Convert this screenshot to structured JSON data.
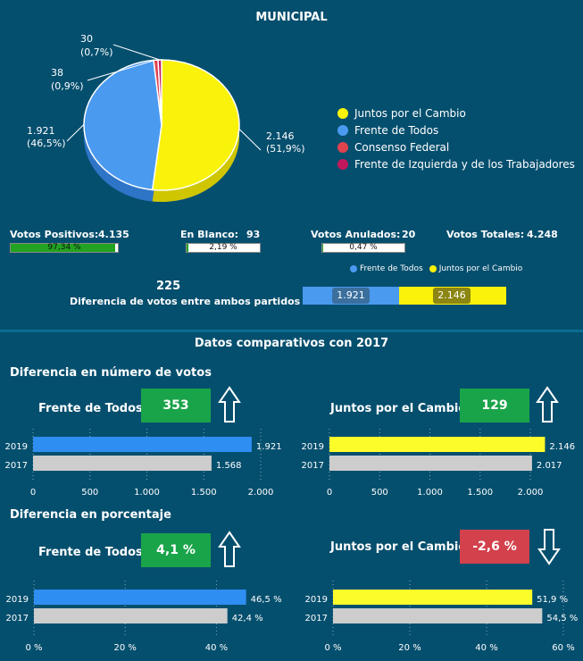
{
  "header": {
    "title": "MUNICIPAL"
  },
  "pie": {
    "slices": [
      {
        "name": "Juntos por el Cambio",
        "value": 2146,
        "label": "2.146",
        "pct": "(51,9%)",
        "color": "#f9f20b"
      },
      {
        "name": "Frente de Todos",
        "value": 1921,
        "label": "1.921",
        "pct": "(46,5%)",
        "color": "#4a9af0"
      },
      {
        "name": "Consenso Federal",
        "value": 38,
        "label": "38",
        "pct": "(0,9%)",
        "color": "#e0434e"
      },
      {
        "name": "Frente de Izquierda y de los Trabajadores",
        "value": 30,
        "label": "30",
        "pct": "(0,7%)",
        "color": "#c2185b"
      }
    ]
  },
  "stats": {
    "positivos": {
      "label": "Votos Positivos:",
      "value": "4.135",
      "bar": "97,34 %",
      "fraction": 0.9734
    },
    "blanco": {
      "label": "En Blanco:",
      "value": "93",
      "bar": "2,19 %",
      "fraction": 0.0219
    },
    "anulados": {
      "label": "Votos Anulados:",
      "value": "20",
      "bar": "0,47 %",
      "fraction": 0.0047
    },
    "totales": {
      "label": "Votos Totales:",
      "value": "4.248"
    }
  },
  "diff": {
    "number": "225",
    "caption": "Diferencia de votos entre ambos partidos",
    "legend": [
      "Frente de Todos",
      "Juntos por el Cambio"
    ],
    "left_label": "1.921",
    "right_label": "2.146",
    "left_value": 1921,
    "right_value": 2146
  },
  "compare": {
    "title": "Datos comparativos con 2017",
    "votes_title": "Diferencia en número de votos",
    "pct_title": "Diferencia en porcentaje",
    "fdt_name": "Frente de Todos",
    "jxc_name": "Juntos por el Cambio",
    "fdt_votes_diff": "353",
    "jxc_votes_diff": "129",
    "fdt_pct_diff": "4,1 %",
    "jxc_pct_diff": "-2,6 %",
    "colors": {
      "y2019_fdt": "#2f8ef2",
      "y2019_jxc": "#fcfc2a",
      "y2017": "#cdcdcd",
      "up": "#1aa44a",
      "down": "#d2414c"
    }
  },
  "chart_data": [
    {
      "type": "pie",
      "title": "MUNICIPAL",
      "categories": [
        "Juntos por el Cambio",
        "Frente de Todos",
        "Consenso Federal",
        "Frente de Izquierda y de los Trabajadores"
      ],
      "values": [
        2146,
        1921,
        38,
        30
      ],
      "legend": "right"
    },
    {
      "type": "bar",
      "title": "",
      "categories": [
        "Frente de Todos",
        "Juntos por el Cambio"
      ],
      "values": [
        1921,
        2146
      ]
    },
    {
      "type": "bar",
      "title": "Frente de Todos",
      "categories": [
        "2019",
        "2017"
      ],
      "values": [
        1921,
        1568
      ],
      "value_labels": [
        "1.921",
        "1.568"
      ],
      "xlim": [
        0,
        2000
      ],
      "ticks": [
        0,
        500,
        1000,
        1500,
        2000
      ],
      "tick_labels": [
        "0",
        "500",
        "1.000",
        "1.500",
        "2.000"
      ]
    },
    {
      "type": "bar",
      "title": "Juntos por el Cambio",
      "categories": [
        "2019",
        "2017"
      ],
      "values": [
        2146,
        2017
      ],
      "value_labels": [
        "2.146",
        "2.017"
      ],
      "xlim": [
        0,
        2000
      ],
      "ticks": [
        0,
        500,
        1000,
        1500,
        2000
      ],
      "tick_labels": [
        "0",
        "500",
        "1.000",
        "1.500",
        "2.000"
      ]
    },
    {
      "type": "bar",
      "title": "Frente de Todos",
      "categories": [
        "2019",
        "2017"
      ],
      "values": [
        46.5,
        42.4
      ],
      "value_labels": [
        "46,5 %",
        "42,4 %"
      ],
      "xlim": [
        0,
        45
      ],
      "ticks": [
        0,
        20,
        40
      ],
      "tick_labels": [
        "0 %",
        "20 %",
        "40 %"
      ]
    },
    {
      "type": "bar",
      "title": "Juntos por el Cambio",
      "categories": [
        "2019",
        "2017"
      ],
      "values": [
        51.9,
        54.5
      ],
      "value_labels": [
        "51,9 %",
        "54,5 %"
      ],
      "xlim": [
        0,
        60
      ],
      "ticks": [
        0,
        20,
        40,
        60
      ],
      "tick_labels": [
        "0 %",
        "20 %",
        "40 %",
        "60 %"
      ]
    }
  ]
}
